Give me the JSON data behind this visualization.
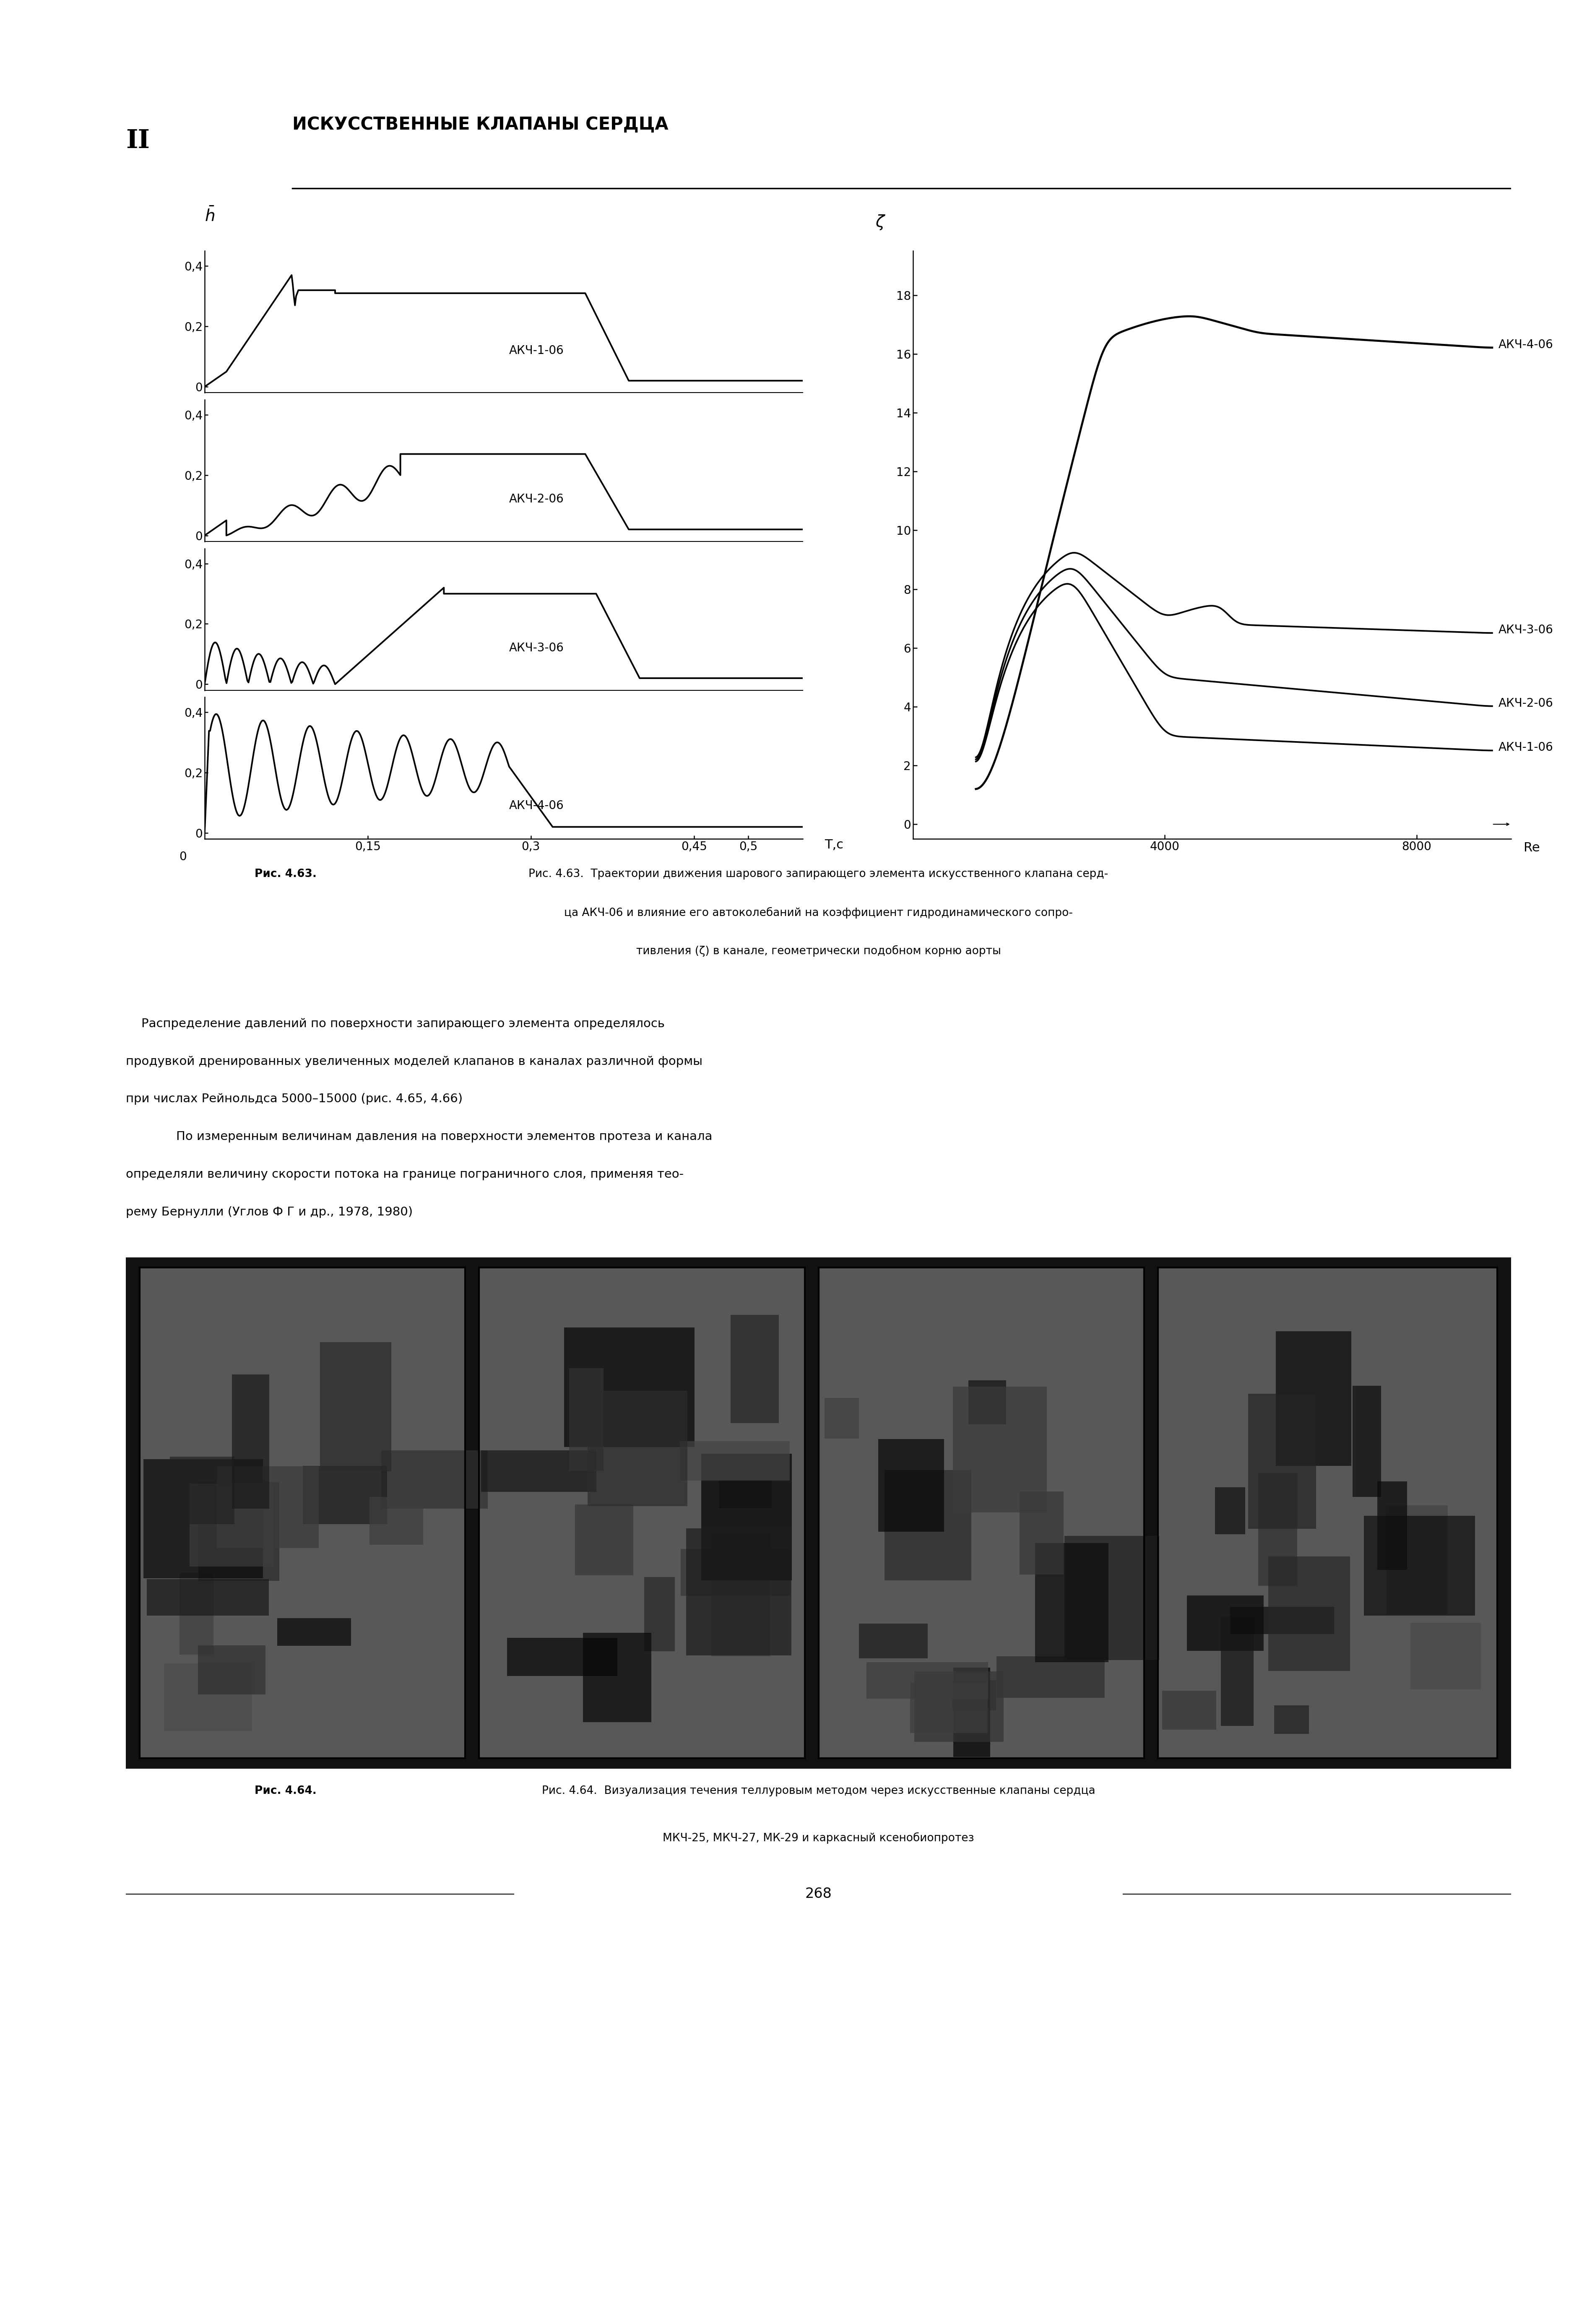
{
  "page_bg": "#ffffff",
  "header_text": "ИСКУССТВЕННЫЕ КЛАПАНЫ СЕРДЦА",
  "chapter_num": "II",
  "left_ylabel": "$\\bar{h}$",
  "right_ylabel": "ζ",
  "left_xlabel": "T,c",
  "right_xlabel": "Re",
  "valve_labels": [
    "АКЧ-1-06",
    "АКЧ-2-06",
    "АКЧ-3-06",
    "АКЧ-4-06"
  ],
  "fig_caption_bold": "Рис. 4.63.",
  "fig_caption_normal": " Траектории движения шарового запирающего элемента искусственного клапана серд-\nца АКЧ-06 и влияние его автоколебаний на коэффициент гидродинамического сопро-\nтивления (ζ) в канале, геометрически подобном корню аорты",
  "body_text1_indent": "    Распределение давлений по поверхности запирающего элемента определялось",
  "body_text1_rest": "продувкой дренированных увеличенных моделей клапанов в каналах различной формы\nпри числах Рейнольдса 5000–15000 (рис. 4.65, 4.66)",
  "body_text2_indent": "    По измеренным величинам давления на поверхности элементов протеза и канала",
  "body_text2_rest": "определяли величину скорости потока на границе пограничного слоя, применяя тео-\nрему Бернулли (Углов Ф Г и др., 1978, 1980)",
  "fig64_caption_bold": "Рис. 4.64.",
  "fig64_caption_normal": " Визуализация течения теллуровым методом через искусственные клапаны сердца\nМКЧ-25, МКЧ-27, МК-29 и каркасный ксенобиопротез",
  "page_num": "268"
}
